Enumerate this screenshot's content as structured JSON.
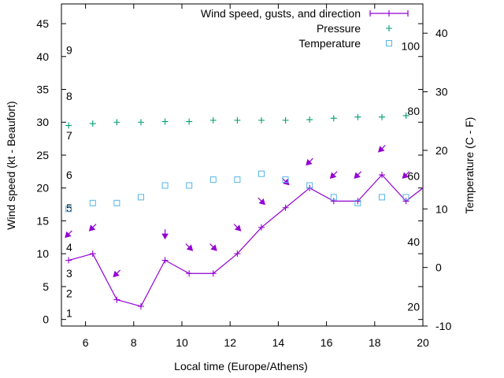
{
  "chart_data": {
    "type": "line",
    "xlabel": "Local time (Europe/Athens)",
    "ylabel_left": "Wind speed (kt - Beaufort)",
    "ylabel_right": "Temperature (C - F)",
    "xlim": [
      5,
      20
    ],
    "ylim_left": [
      -1,
      48
    ],
    "ylim_right": [
      -10,
      45
    ],
    "x_ticks": [
      "6",
      "8",
      "10",
      "12",
      "14",
      "16",
      "18",
      "20"
    ],
    "y_ticks_left": [
      "0",
      "5",
      "10",
      "15",
      "20",
      "25",
      "30",
      "35",
      "40",
      "45"
    ],
    "y_ticks_right": [
      "-10",
      "0",
      "10",
      "20",
      "30",
      "40"
    ],
    "beaufort_labels": [
      {
        "label": "1",
        "kt": 1
      },
      {
        "label": "2",
        "kt": 4
      },
      {
        "label": "3",
        "kt": 7
      },
      {
        "label": "4",
        "kt": 11
      },
      {
        "label": "5",
        "kt": 17
      },
      {
        "label": "6",
        "kt": 22
      },
      {
        "label": "7",
        "kt": 28
      },
      {
        "label": "8",
        "kt": 34
      },
      {
        "label": "9",
        "kt": 41
      }
    ],
    "fahrenheit_labels": [
      {
        "label": "20",
        "c": -6.7
      },
      {
        "label": "40",
        "c": 4.4
      },
      {
        "label": "60",
        "c": 15.6
      },
      {
        "label": "80",
        "c": 26.7
      },
      {
        "label": "100",
        "c": 37.8
      }
    ],
    "legend": {
      "position": "top-right",
      "wind": "Wind speed, gusts, and direction",
      "pressure": "Pressure",
      "temperature": "Temperature"
    },
    "colors": {
      "wind": "#9400d3",
      "pressure": "#009e73",
      "temperature": "#56b4e9"
    },
    "series": [
      {
        "name": "Wind speed, gusts, and direction",
        "axis": "left",
        "x": [
          5.3,
          6.3,
          7.3,
          8.3,
          9.3,
          10.3,
          11.3,
          12.3,
          13.3,
          14.3,
          15.3,
          16.3,
          17.3,
          18.3,
          19.3,
          20
        ],
        "y": [
          9,
          10,
          3,
          2,
          9,
          7,
          7,
          10,
          14,
          17,
          20,
          18,
          18,
          22,
          18,
          20
        ],
        "direction_arrows": [
          {
            "x": 5.3,
            "y": 13,
            "dir": "sw"
          },
          {
            "x": 6.3,
            "y": 14,
            "dir": "sw"
          },
          {
            "x": 7.3,
            "y": 7,
            "dir": "sw"
          },
          {
            "x": 9.3,
            "y": 13,
            "dir": "s"
          },
          {
            "x": 10.3,
            "y": 11,
            "dir": "se"
          },
          {
            "x": 11.3,
            "y": 11,
            "dir": "se"
          },
          {
            "x": 12.3,
            "y": 14,
            "dir": "se"
          },
          {
            "x": 13.3,
            "y": 18,
            "dir": "se"
          },
          {
            "x": 14.3,
            "y": 21,
            "dir": "se"
          },
          {
            "x": 15.3,
            "y": 24,
            "dir": "sw"
          },
          {
            "x": 16.3,
            "y": 22,
            "dir": "sw"
          },
          {
            "x": 17.3,
            "y": 22,
            "dir": "sw"
          },
          {
            "x": 18.3,
            "y": 26,
            "dir": "sw"
          },
          {
            "x": 19.3,
            "y": 22,
            "dir": "sw"
          }
        ]
      },
      {
        "name": "Pressure",
        "axis": "left",
        "x": [
          5.3,
          6.3,
          7.3,
          8.3,
          9.3,
          10.3,
          11.3,
          12.3,
          13.3,
          14.3,
          15.3,
          16.3,
          17.3,
          18.3,
          19.3
        ],
        "y": [
          29.5,
          29.8,
          30.0,
          30.0,
          30.1,
          30.1,
          30.3,
          30.3,
          30.3,
          30.3,
          30.4,
          30.6,
          30.8,
          30.8,
          31.0
        ]
      },
      {
        "name": "Temperature",
        "axis": "right",
        "x": [
          5.3,
          6.3,
          7.3,
          8.3,
          9.3,
          10.3,
          11.3,
          12.3,
          13.3,
          14.3,
          15.3,
          16.3,
          17.3,
          18.3,
          19.3
        ],
        "y": [
          10,
          11,
          11,
          12,
          14,
          14,
          15,
          15,
          16,
          15,
          14,
          12,
          11,
          12,
          12
        ]
      }
    ]
  }
}
